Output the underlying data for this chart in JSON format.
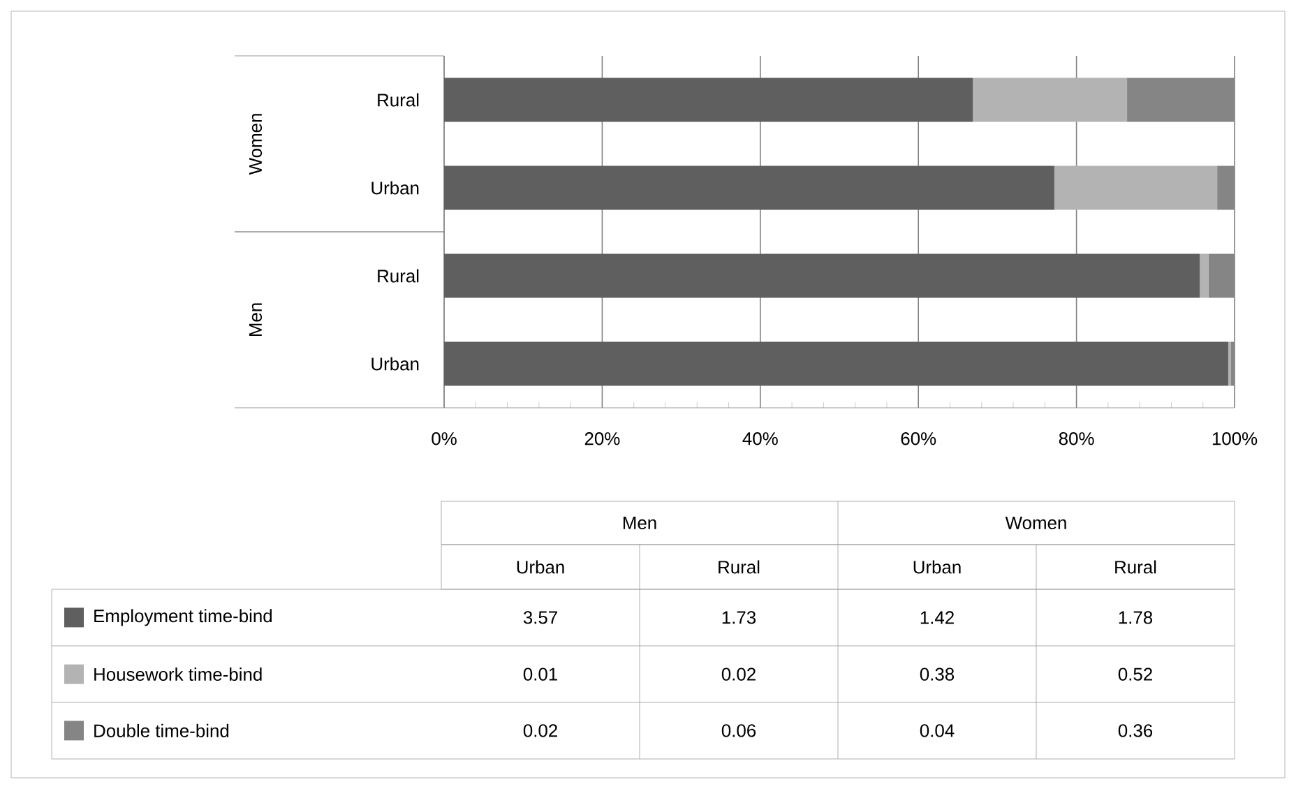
{
  "chart_data": {
    "type": "bar",
    "orientation": "horizontal",
    "stacked": true,
    "categories": [
      "Rural",
      "Urban",
      "Rural",
      "Urban"
    ],
    "annotations": [
      "Women",
      "Men",
      "3.57",
      "1.73",
      "1.42",
      "1.78",
      "0.01",
      "0.02",
      "0.38",
      "0.52",
      "0.02",
      "0.06",
      "0.04",
      "0.36"
    ],
    "series": [
      {
        "name": "Employment time-bind",
        "color": "#5f5f5f",
        "values": [
          66.9,
          77.2,
          95.6,
          99.2
        ]
      },
      {
        "name": "Housework time-bind",
        "color": "#b3b3b3",
        "values": [
          19.5,
          20.6,
          1.1,
          0.3
        ]
      },
      {
        "name": "Double time-bind",
        "color": "#858585",
        "values": [
          13.6,
          2.2,
          3.3,
          0.5
        ]
      }
    ],
    "xlim": [
      0,
      100
    ],
    "xticks": [
      {
        "value": 0,
        "label": "0%"
      },
      {
        "value": 20,
        "label": "20%"
      },
      {
        "value": 40,
        "label": "40%"
      },
      {
        "value": 60,
        "label": "60%"
      },
      {
        "value": 80,
        "label": "80%"
      },
      {
        "value": 100,
        "label": "100%"
      }
    ],
    "grid": "x",
    "legend": "bottom left"
  }
}
